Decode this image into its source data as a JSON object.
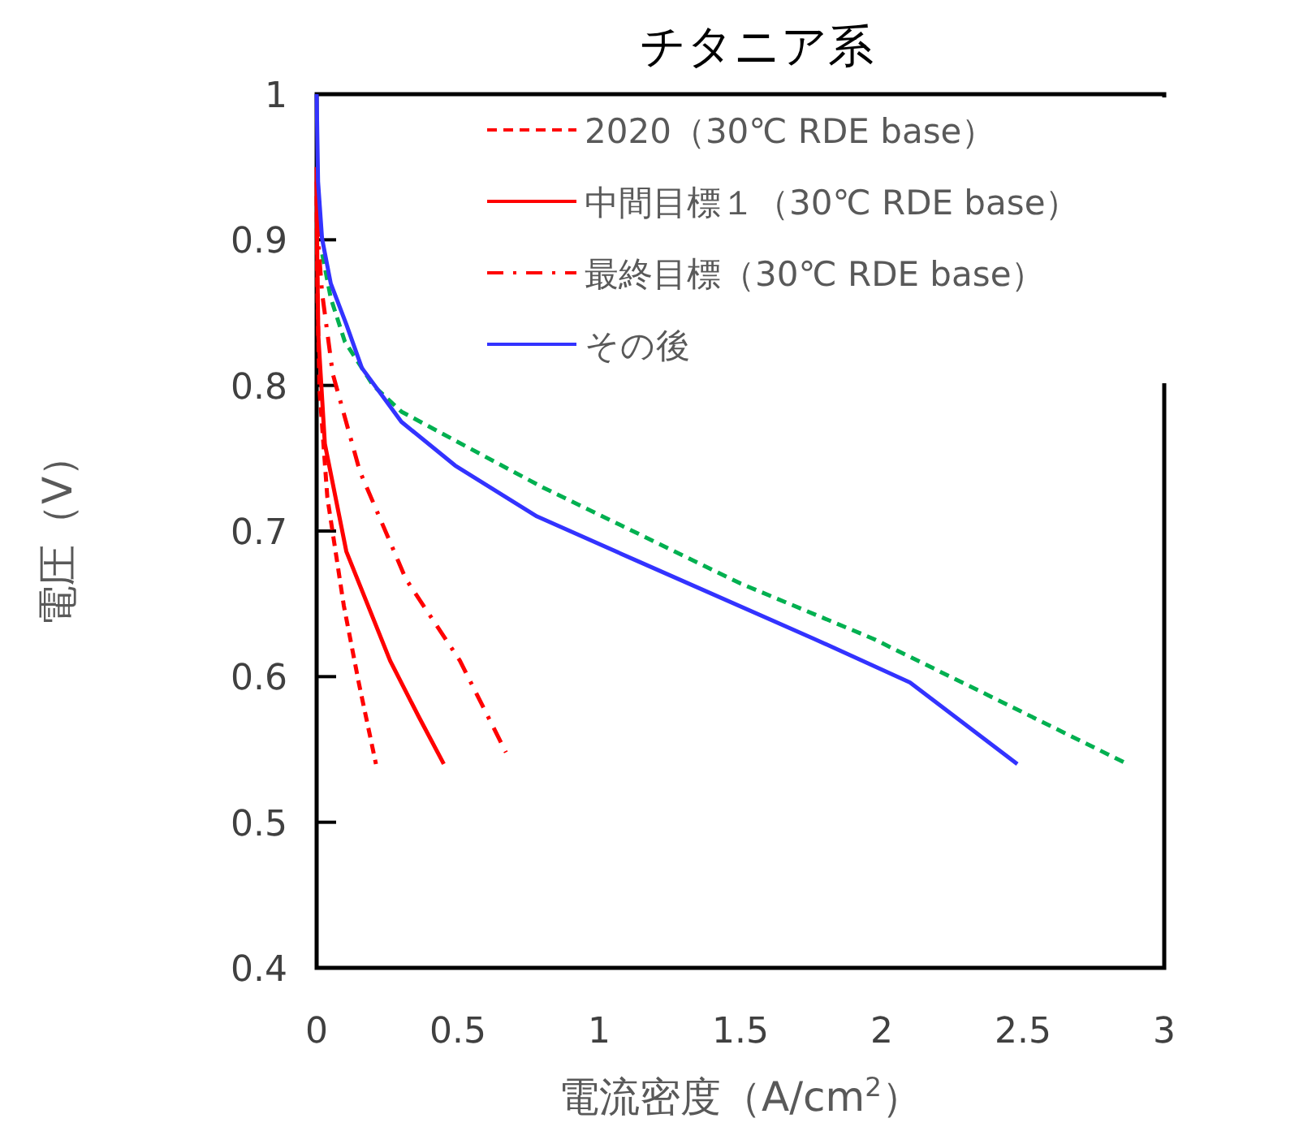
{
  "chart_data": {
    "type": "line",
    "title": "チタニア系",
    "xlabel": "電流密度（A/cm$^{2}$）",
    "ylabel": "電圧（V）",
    "xlim": [
      0,
      3
    ],
    "ylim": [
      0.4,
      1
    ],
    "xticks": [
      0,
      0.5,
      1,
      1.5,
      2,
      2.5,
      3
    ],
    "yticks": [
      0.4,
      0.5,
      0.6,
      0.7,
      0.8,
      0.9,
      1
    ],
    "legend": "top right",
    "grid": false,
    "marker": "none",
    "series": [
      {
        "color": "#00b050",
        "line_style": "dashed",
        "x": [
          0.02,
          0.05,
          0.1,
          0.2,
          0.3,
          0.53,
          0.8,
          1.14,
          1.5,
          1.97,
          2.4,
          2.87
        ],
        "values": [
          0.89,
          0.86,
          0.83,
          0.8,
          0.782,
          0.758,
          0.73,
          0.698,
          0.664,
          0.626,
          0.585,
          0.54
        ]
      },
      {
        "name": "2020（30℃ RDE base）",
        "color": "#ff0000",
        "line_style": "dashed",
        "x": [
          0,
          0.003,
          0.01,
          0.038,
          0.096,
          0.15,
          0.21
        ],
        "values": [
          0.93,
          0.86,
          0.797,
          0.723,
          0.649,
          0.595,
          0.54
        ]
      },
      {
        "name": "中間目標１（30℃ RDE base）",
        "color": "#ff0000",
        "line_style": "solid",
        "x": [
          0,
          0.002,
          0.006,
          0.029,
          0.105,
          0.26,
          0.36,
          0.45
        ],
        "values": [
          0.95,
          0.89,
          0.834,
          0.76,
          0.686,
          0.611,
          0.573,
          0.54
        ]
      },
      {
        "name": "最終目標（30℃ RDE base）",
        "color": "#ff0000",
        "line_style": "dashdot",
        "x": [
          0,
          0.005,
          0.019,
          0.057,
          0.153,
          0.316,
          0.507,
          0.67
        ],
        "values": [
          0.94,
          0.9,
          0.864,
          0.808,
          0.741,
          0.667,
          0.611,
          0.548
        ]
      },
      {
        "name": "その後",
        "color": "#3333ff",
        "line_style": "solid",
        "x": [
          0,
          0.005,
          0.019,
          0.05,
          0.105,
          0.16,
          0.3,
          0.49,
          0.78,
          1.14,
          1.76,
          2.1,
          2.48
        ],
        "values": [
          1,
          0.94,
          0.901,
          0.87,
          0.842,
          0.812,
          0.775,
          0.745,
          0.71,
          0.679,
          0.626,
          0.596,
          0.54
        ]
      }
    ]
  }
}
